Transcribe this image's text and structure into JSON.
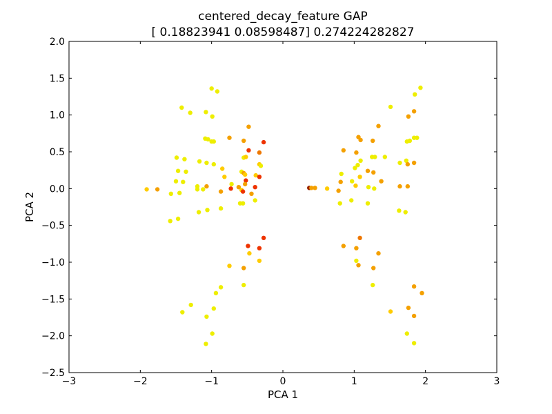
{
  "chart_data": {
    "type": "scatter",
    "title": "centered_decay_feature GAP",
    "subtitle": "[ 0.18823941  0.08598487] 0.274224282827",
    "xlabel": "PCA 1",
    "ylabel": "PCA 2",
    "xlim": [
      -3,
      3
    ],
    "ylim": [
      -2.5,
      2.0
    ],
    "xticks": [
      -3,
      -2,
      -1,
      0,
      1,
      2,
      3
    ],
    "xtick_labels": [
      "−3",
      "−2",
      "−1",
      "0",
      "1",
      "2",
      "3"
    ],
    "yticks": [
      -2.5,
      -2.0,
      -1.5,
      -1.0,
      -0.5,
      0.0,
      0.5,
      1.0,
      1.5,
      2.0
    ],
    "ytick_labels": [
      "−2.5",
      "−2.0",
      "−1.5",
      "−1.0",
      "−0.5",
      "0.0",
      "0.5",
      "1.0",
      "1.5",
      "2.0"
    ],
    "grid": false,
    "legend": "none",
    "color_key": {
      "y": "#eeee00",
      "g": "#ffcc00",
      "o": "#f4a000",
      "d": "#ee7700",
      "r": "#ee3300",
      "b": "#992200"
    },
    "points": [
      {
        "x": -1.0,
        "y": 1.36,
        "c": "y"
      },
      {
        "x": -0.92,
        "y": 1.32,
        "c": "y"
      },
      {
        "x": -1.42,
        "y": 1.1,
        "c": "y"
      },
      {
        "x": -1.3,
        "y": 1.03,
        "c": "y"
      },
      {
        "x": -1.08,
        "y": 1.04,
        "c": "y"
      },
      {
        "x": -0.99,
        "y": 0.98,
        "c": "y"
      },
      {
        "x": -1.09,
        "y": 0.68,
        "c": "y"
      },
      {
        "x": -1.05,
        "y": 0.67,
        "c": "y"
      },
      {
        "x": -1.0,
        "y": 0.64,
        "c": "y"
      },
      {
        "x": -0.97,
        "y": 0.64,
        "c": "y"
      },
      {
        "x": -0.75,
        "y": 0.69,
        "c": "o"
      },
      {
        "x": -0.48,
        "y": 0.84,
        "c": "o"
      },
      {
        "x": -0.55,
        "y": 0.65,
        "c": "o"
      },
      {
        "x": -0.27,
        "y": 0.63,
        "c": "r"
      },
      {
        "x": -0.48,
        "y": 0.52,
        "c": "r"
      },
      {
        "x": -0.33,
        "y": 0.49,
        "c": "d"
      },
      {
        "x": -1.49,
        "y": 0.42,
        "c": "y"
      },
      {
        "x": -1.38,
        "y": 0.4,
        "c": "y"
      },
      {
        "x": -1.17,
        "y": 0.37,
        "c": "y"
      },
      {
        "x": -1.07,
        "y": 0.35,
        "c": "y"
      },
      {
        "x": -0.97,
        "y": 0.33,
        "c": "y"
      },
      {
        "x": -0.85,
        "y": 0.27,
        "c": "g"
      },
      {
        "x": -0.55,
        "y": 0.42,
        "c": "y"
      },
      {
        "x": -0.52,
        "y": 0.43,
        "c": "g"
      },
      {
        "x": -0.33,
        "y": 0.33,
        "c": "g"
      },
      {
        "x": -0.31,
        "y": 0.31,
        "c": "y"
      },
      {
        "x": -1.47,
        "y": 0.24,
        "c": "y"
      },
      {
        "x": -1.36,
        "y": 0.23,
        "c": "y"
      },
      {
        "x": -0.58,
        "y": 0.23,
        "c": "y"
      },
      {
        "x": -0.55,
        "y": 0.21,
        "c": "o"
      },
      {
        "x": -0.53,
        "y": 0.19,
        "c": "g"
      },
      {
        "x": -0.38,
        "y": 0.18,
        "c": "g"
      },
      {
        "x": -0.33,
        "y": 0.16,
        "c": "r"
      },
      {
        "x": -0.82,
        "y": 0.16,
        "c": "g"
      },
      {
        "x": -0.52,
        "y": 0.11,
        "c": "r"
      },
      {
        "x": -1.5,
        "y": 0.1,
        "c": "y"
      },
      {
        "x": -1.4,
        "y": 0.09,
        "c": "y"
      },
      {
        "x": -0.72,
        "y": 0.06,
        "c": "y"
      },
      {
        "x": -0.53,
        "y": 0.06,
        "c": "o"
      },
      {
        "x": -1.2,
        "y": 0.03,
        "c": "y"
      },
      {
        "x": -1.07,
        "y": 0.03,
        "c": "o"
      },
      {
        "x": -0.62,
        "y": 0.02,
        "c": "o"
      },
      {
        "x": -0.39,
        "y": 0.02,
        "c": "r"
      },
      {
        "x": -1.91,
        "y": -0.01,
        "c": "g"
      },
      {
        "x": -1.76,
        "y": -0.01,
        "c": "o"
      },
      {
        "x": -1.2,
        "y": -0.01,
        "c": "y"
      },
      {
        "x": -1.12,
        "y": -0.01,
        "c": "y"
      },
      {
        "x": -0.73,
        "y": 0.0,
        "c": "r"
      },
      {
        "x": -0.58,
        "y": -0.02,
        "c": "g"
      },
      {
        "x": -0.56,
        "y": -0.04,
        "c": "r"
      },
      {
        "x": -0.87,
        "y": -0.04,
        "c": "o"
      },
      {
        "x": -1.57,
        "y": -0.07,
        "c": "y"
      },
      {
        "x": -1.45,
        "y": -0.06,
        "c": "y"
      },
      {
        "x": -0.44,
        "y": -0.07,
        "c": "o"
      },
      {
        "x": -0.6,
        "y": -0.2,
        "c": "y"
      },
      {
        "x": -0.56,
        "y": -0.2,
        "c": "y"
      },
      {
        "x": -0.39,
        "y": -0.16,
        "c": "y"
      },
      {
        "x": -0.87,
        "y": -0.27,
        "c": "y"
      },
      {
        "x": -1.06,
        "y": -0.29,
        "c": "y"
      },
      {
        "x": -1.18,
        "y": -0.32,
        "c": "y"
      },
      {
        "x": -1.47,
        "y": -0.41,
        "c": "y"
      },
      {
        "x": -1.58,
        "y": -0.44,
        "c": "y"
      },
      {
        "x": -0.49,
        "y": -0.78,
        "c": "r"
      },
      {
        "x": -0.33,
        "y": -0.81,
        "c": "r"
      },
      {
        "x": -0.27,
        "y": -0.67,
        "c": "r"
      },
      {
        "x": -0.47,
        "y": -0.88,
        "c": "g"
      },
      {
        "x": -0.33,
        "y": -0.98,
        "c": "g"
      },
      {
        "x": -0.75,
        "y": -1.05,
        "c": "g"
      },
      {
        "x": -0.55,
        "y": -1.08,
        "c": "o"
      },
      {
        "x": -0.87,
        "y": -1.34,
        "c": "y"
      },
      {
        "x": -0.55,
        "y": -1.31,
        "c": "y"
      },
      {
        "x": -0.94,
        "y": -1.42,
        "c": "y"
      },
      {
        "x": -1.29,
        "y": -1.58,
        "c": "y"
      },
      {
        "x": -1.41,
        "y": -1.68,
        "c": "y"
      },
      {
        "x": -0.97,
        "y": -1.63,
        "c": "y"
      },
      {
        "x": -1.07,
        "y": -1.74,
        "c": "y"
      },
      {
        "x": -0.99,
        "y": -1.97,
        "c": "y"
      },
      {
        "x": -1.08,
        "y": -2.11,
        "c": "y"
      },
      {
        "x": 1.51,
        "y": 1.11,
        "c": "y"
      },
      {
        "x": 1.93,
        "y": 1.37,
        "c": "y"
      },
      {
        "x": 1.85,
        "y": 1.28,
        "c": "y"
      },
      {
        "x": 1.84,
        "y": 1.05,
        "c": "o"
      },
      {
        "x": 1.76,
        "y": 0.98,
        "c": "o"
      },
      {
        "x": 1.34,
        "y": 0.85,
        "c": "o"
      },
      {
        "x": 1.06,
        "y": 0.7,
        "c": "o"
      },
      {
        "x": 1.09,
        "y": 0.66,
        "c": "o"
      },
      {
        "x": 1.26,
        "y": 0.65,
        "c": "o"
      },
      {
        "x": 1.74,
        "y": 0.64,
        "c": "y"
      },
      {
        "x": 1.78,
        "y": 0.65,
        "c": "y"
      },
      {
        "x": 1.84,
        "y": 0.69,
        "c": "y"
      },
      {
        "x": 1.88,
        "y": 0.69,
        "c": "y"
      },
      {
        "x": 0.85,
        "y": 0.52,
        "c": "o"
      },
      {
        "x": 1.03,
        "y": 0.49,
        "c": "o"
      },
      {
        "x": 1.25,
        "y": 0.43,
        "c": "y"
      },
      {
        "x": 1.29,
        "y": 0.43,
        "c": "y"
      },
      {
        "x": 1.43,
        "y": 0.43,
        "c": "y"
      },
      {
        "x": 1.09,
        "y": 0.38,
        "c": "y"
      },
      {
        "x": 1.64,
        "y": 0.35,
        "c": "y"
      },
      {
        "x": 1.73,
        "y": 0.38,
        "c": "y"
      },
      {
        "x": 1.75,
        "y": 0.33,
        "c": "o"
      },
      {
        "x": 1.84,
        "y": 0.35,
        "c": "o"
      },
      {
        "x": 1.05,
        "y": 0.32,
        "c": "y"
      },
      {
        "x": 1.01,
        "y": 0.28,
        "c": "y"
      },
      {
        "x": 1.19,
        "y": 0.24,
        "c": "o"
      },
      {
        "x": 1.27,
        "y": 0.22,
        "c": "o"
      },
      {
        "x": 0.82,
        "y": 0.2,
        "c": "y"
      },
      {
        "x": 1.08,
        "y": 0.16,
        "c": "g"
      },
      {
        "x": 0.81,
        "y": 0.09,
        "c": "o"
      },
      {
        "x": 0.97,
        "y": 0.1,
        "c": "y"
      },
      {
        "x": 1.38,
        "y": 0.1,
        "c": "o"
      },
      {
        "x": 1.02,
        "y": 0.04,
        "c": "g"
      },
      {
        "x": 0.37,
        "y": 0.01,
        "c": "b"
      },
      {
        "x": 0.4,
        "y": 0.01,
        "c": "o"
      },
      {
        "x": 0.45,
        "y": 0.01,
        "c": "o"
      },
      {
        "x": 0.62,
        "y": 0.0,
        "c": "g"
      },
      {
        "x": 0.78,
        "y": -0.03,
        "c": "o"
      },
      {
        "x": 1.2,
        "y": 0.02,
        "c": "y"
      },
      {
        "x": 1.28,
        "y": 0.0,
        "c": "y"
      },
      {
        "x": 1.64,
        "y": 0.03,
        "c": "o"
      },
      {
        "x": 1.75,
        "y": 0.03,
        "c": "o"
      },
      {
        "x": 0.8,
        "y": -0.2,
        "c": "y"
      },
      {
        "x": 0.96,
        "y": -0.16,
        "c": "y"
      },
      {
        "x": 1.19,
        "y": -0.2,
        "c": "y"
      },
      {
        "x": 1.63,
        "y": -0.3,
        "c": "y"
      },
      {
        "x": 1.72,
        "y": -0.32,
        "c": "y"
      },
      {
        "x": 0.85,
        "y": -0.78,
        "c": "o"
      },
      {
        "x": 1.03,
        "y": -0.81,
        "c": "o"
      },
      {
        "x": 1.08,
        "y": -0.67,
        "c": "d"
      },
      {
        "x": 1.34,
        "y": -0.88,
        "c": "o"
      },
      {
        "x": 1.03,
        "y": -0.98,
        "c": "y"
      },
      {
        "x": 1.06,
        "y": -1.04,
        "c": "o"
      },
      {
        "x": 1.27,
        "y": -1.08,
        "c": "o"
      },
      {
        "x": 1.26,
        "y": -1.31,
        "c": "y"
      },
      {
        "x": 1.84,
        "y": -1.33,
        "c": "o"
      },
      {
        "x": 1.95,
        "y": -1.42,
        "c": "o"
      },
      {
        "x": 1.51,
        "y": -1.67,
        "c": "g"
      },
      {
        "x": 1.76,
        "y": -1.62,
        "c": "o"
      },
      {
        "x": 1.84,
        "y": -1.73,
        "c": "o"
      },
      {
        "x": 1.74,
        "y": -1.97,
        "c": "y"
      },
      {
        "x": 1.84,
        "y": -2.1,
        "c": "y"
      }
    ]
  }
}
